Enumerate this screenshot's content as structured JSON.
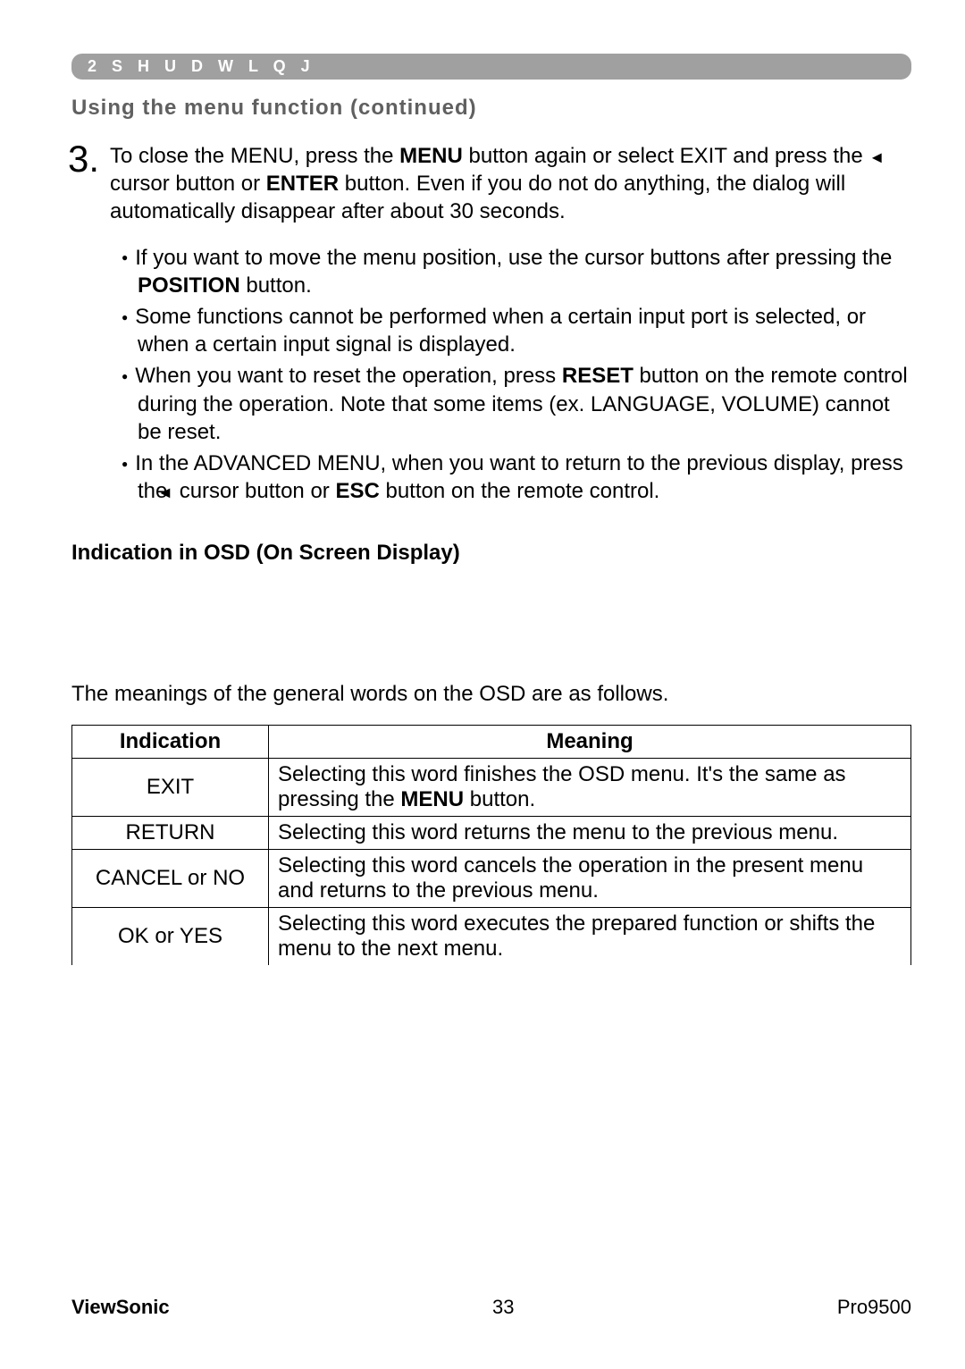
{
  "section_bar": "2 S H U D W L Q J",
  "subtitle": "Using the menu function (continued)",
  "step": {
    "num": "3.",
    "text_parts": [
      "To close the MENU, press the ",
      "MENU",
      " button again or select EXIT and press the ",
      "◄",
      " cursor button or ",
      "ENTER",
      " button. Even if you do not do anything, the dialog will automatically disappear after about 30 seconds."
    ]
  },
  "bullets": [
    {
      "parts": [
        "If you want to move the menu position, use the cursor buttons after pressing the ",
        "POSITION",
        " button."
      ]
    },
    {
      "parts": [
        "Some functions cannot be performed when a certain input port is selected, or when a certain input signal is displayed."
      ]
    },
    {
      "parts": [
        "When you want to reset the operation, press ",
        "RESET",
        " button on the remote control during the operation. Note that some items (ex. LANGUAGE, VOLUME) cannot be reset."
      ]
    },
    {
      "parts": [
        "In the ADVANCED MENU, when you want to return to the previous display, press the ",
        "◄",
        " cursor button or ",
        "ESC",
        " button on the remote control."
      ]
    }
  ],
  "osd_heading": "Indication in OSD (On Screen Display)",
  "osd_intro": "The meanings of the general words on the OSD are as follows.",
  "table": {
    "headers": [
      "Indication",
      "Meaning"
    ],
    "rows": [
      {
        "ind": "EXIT",
        "meaning_parts": [
          "Selecting this word finishes the OSD menu. It's the same as pressing the ",
          "MENU",
          " button."
        ]
      },
      {
        "ind": "RETURN",
        "meaning_parts": [
          "Selecting this word returns the menu to the previous menu."
        ]
      },
      {
        "ind": "CANCEL or NO",
        "meaning_parts": [
          "Selecting this word cancels the operation in the present menu and returns to the previous menu."
        ]
      },
      {
        "ind": "OK or YES",
        "meaning_parts": [
          "Selecting this word executes the prepared function or shifts the menu to the next menu."
        ]
      }
    ]
  },
  "footer": {
    "brand": "ViewSonic",
    "page": "33",
    "model": "Pro9500"
  },
  "bold_tokens": [
    "MENU",
    "ENTER",
    "POSITION",
    "RESET",
    "ESC"
  ],
  "colors": {
    "bar_bg": "#a0a0a0",
    "bar_text": "#ffffff",
    "subtitle": "#606060",
    "text": "#000000",
    "bg": "#ffffff"
  }
}
